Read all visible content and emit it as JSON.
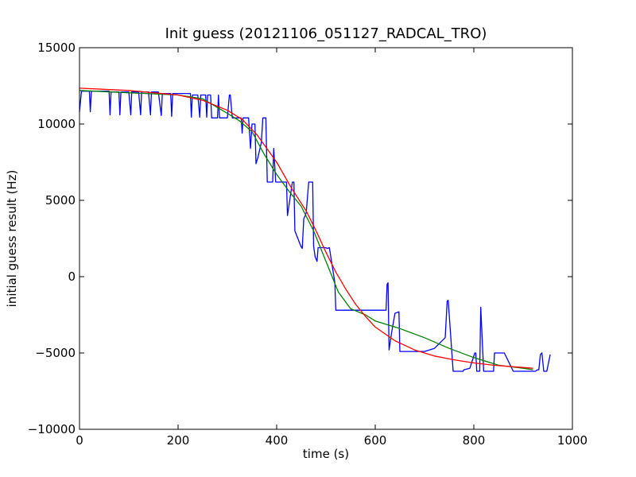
{
  "chart_data": {
    "type": "line",
    "title": "Init guess (20121106_051127_RADCAL_TRO)",
    "xlabel": "time (s)",
    "ylabel": "initial guess result (Hz)",
    "xlim": [
      0,
      1000
    ],
    "ylim": [
      -10000,
      15000
    ],
    "xticks": [
      0,
      200,
      400,
      600,
      800,
      1000
    ],
    "xtick_labels": [
      "0",
      "200",
      "400",
      "600",
      "800",
      "1000"
    ],
    "yticks": [
      -10000,
      -5000,
      0,
      5000,
      10000,
      15000
    ],
    "ytick_labels": [
      "−10000",
      "−5000",
      "0",
      "5000",
      "10000",
      "15000"
    ],
    "grid": false,
    "series": [
      {
        "color": "#0000ff",
        "x": [
          0,
          4,
          6,
          20,
          22,
          24,
          30,
          60,
          62,
          64,
          70,
          80,
          82,
          84,
          100,
          104,
          106,
          110,
          120,
          124,
          126,
          140,
          144,
          146,
          160,
          166,
          168,
          185,
          187,
          189,
          200,
          225,
          227,
          229,
          240,
          244,
          246,
          250,
          256,
          258,
          260,
          266,
          268,
          280,
          282,
          284,
          300,
          304,
          306,
          310,
          318,
          328,
          330,
          332,
          343,
          347,
          350,
          352,
          356,
          358,
          362,
          369,
          372,
          378,
          381,
          383,
          388,
          392,
          394,
          398,
          402,
          404,
          418,
          420,
          422,
          432,
          435,
          437,
          449,
          452,
          455,
          458,
          460,
          465,
          469,
          473,
          475,
          478,
          482,
          484,
          494,
          497,
          499,
          503,
          507,
          518,
          520,
          523,
          525,
          528,
          533,
          538,
          550,
          565,
          580,
          600,
          622,
          624,
          626,
          628,
          633,
          640,
          648,
          650,
          652,
          668,
          700,
          720,
          742,
          746,
          748,
          758,
          762,
          768,
          772,
          778,
          780,
          792,
          802,
          804,
          806,
          808,
          812,
          814,
          820,
          824,
          826,
          830,
          840,
          842,
          858,
          860,
          862,
          880,
          900,
          910,
          920,
          925,
          929,
          932,
          935,
          938,
          942,
          944,
          948,
          955
        ],
        "y": [
          10800,
          12150,
          12150,
          12150,
          10800,
          12150,
          12150,
          12150,
          10600,
          12100,
          12100,
          12100,
          10600,
          12100,
          12100,
          10600,
          12100,
          12100,
          12100,
          10600,
          12100,
          12100,
          10600,
          12100,
          12100,
          10550,
          12000,
          12000,
          10500,
          12000,
          12000,
          12000,
          10450,
          11900,
          11900,
          10450,
          11900,
          11900,
          11900,
          10450,
          11900,
          11900,
          10400,
          10400,
          11900,
          10400,
          10400,
          11900,
          11900,
          10400,
          10400,
          10400,
          9400,
          10400,
          10400,
          8400,
          10000,
          10000,
          10000,
          7400,
          7800,
          8800,
          10400,
          10400,
          6200,
          6200,
          6200,
          6200,
          8400,
          6200,
          6200,
          6200,
          6200,
          6200,
          4000,
          6200,
          6200,
          3000,
          2000,
          1850,
          3800,
          4000,
          4200,
          6200,
          6200,
          6200,
          2000,
          1300,
          1000,
          1900,
          1900,
          1900,
          1900,
          1850,
          1900,
          -400,
          -2200,
          -2200,
          -2200,
          -2200,
          -2200,
          -2200,
          -2200,
          -2200,
          -2200,
          -2200,
          -2200,
          -500,
          -400,
          -4800,
          -3700,
          -2400,
          -2300,
          -4900,
          -4900,
          -4900,
          -4900,
          -4700,
          -4000,
          -1600,
          -1550,
          -6200,
          -6200,
          -6200,
          -6200,
          -6200,
          -6100,
          -6000,
          -5000,
          -5000,
          -6200,
          -6200,
          -6200,
          -2000,
          -6200,
          -6200,
          -6200,
          -6200,
          -6200,
          -5000,
          -5000,
          -5000,
          -5000,
          -6200,
          -6200,
          -6200,
          -6200,
          -6200,
          -6100,
          -6100,
          -5100,
          -5000,
          -6200,
          -6200,
          -6200,
          -5100
        ]
      },
      {
        "color": "#008000",
        "x": [
          0,
          200,
          250,
          300,
          325,
          350,
          375,
          400,
          425,
          450,
          475,
          500,
          525,
          550,
          580,
          600,
          650,
          700,
          750,
          800,
          850,
          900,
          920
        ],
        "y": [
          12200,
          11900,
          11650,
          10700,
          10200,
          9500,
          8000,
          6700,
          5600,
          4600,
          3000,
          1000,
          -1000,
          -2100,
          -2500,
          -2900,
          -3400,
          -4000,
          -4700,
          -5300,
          -5800,
          -6000,
          -6100
        ]
      },
      {
        "color": "#ff0000",
        "x": [
          0,
          100,
          200,
          250,
          300,
          330,
          360,
          400,
          430,
          460,
          480,
          500,
          520,
          540,
          560,
          580,
          600,
          640,
          680,
          720,
          760,
          800,
          840,
          880,
          920
        ],
        "y": [
          12350,
          12200,
          11900,
          11550,
          10900,
          10300,
          9300,
          7500,
          5800,
          4300,
          3000,
          1600,
          300,
          -800,
          -1800,
          -2600,
          -3300,
          -4200,
          -4800,
          -5200,
          -5450,
          -5650,
          -5800,
          -5900,
          -6000
        ]
      }
    ]
  }
}
